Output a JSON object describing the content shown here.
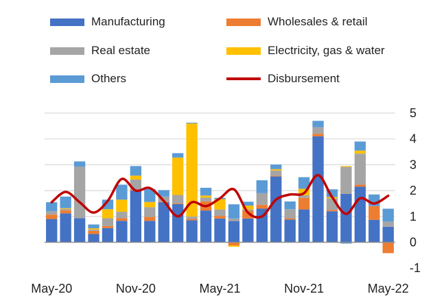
{
  "chart_data": {
    "type": "bar",
    "stacked": true,
    "title": "",
    "xlabel": "",
    "ylabel": "",
    "ylim": [
      -1,
      5
    ],
    "yticks": [
      "-1",
      "0",
      "1",
      "2",
      "3",
      "4",
      "5"
    ],
    "y_axis_side": "right",
    "grid": true,
    "legend_placement": "top",
    "categories": [
      "May-20",
      "Jun-20",
      "Jul-20",
      "Aug-20",
      "Sep-20",
      "Oct-20",
      "Nov-20",
      "Dec-20",
      "Jan-21",
      "Feb-21",
      "Mar-21",
      "Apr-21",
      "May-21",
      "Jun-21",
      "Jul-21",
      "Aug-21",
      "Sep-21",
      "Oct-21",
      "Nov-21",
      "Dec-21",
      "Jan-22",
      "Feb-22",
      "Mar-22",
      "Apr-22",
      "May-22"
    ],
    "xtick_labels": [
      "May-20",
      "Nov-20",
      "May-21",
      "Nov-21",
      "May-22"
    ],
    "series": [
      {
        "name": "Manufacturing",
        "color": "#4472C4",
        "values": [
          0.9,
          1.12,
          0.93,
          0.32,
          0.55,
          0.83,
          2.0,
          0.83,
          1.55,
          1.48,
          0.85,
          1.23,
          0.92,
          0.82,
          0.92,
          1.3,
          2.55,
          0.88,
          1.27,
          4.1,
          1.2,
          1.87,
          2.15,
          0.87,
          0.6
        ]
      },
      {
        "name": "Wholesales & retail",
        "color": "#ED7D31",
        "values": [
          0.17,
          0.12,
          0.0,
          0.12,
          0.08,
          0.1,
          0.03,
          0.15,
          0.02,
          0.03,
          0.05,
          0.35,
          0.1,
          -0.12,
          0.3,
          0.15,
          0.03,
          0.05,
          0.45,
          0.1,
          0.05,
          0.0,
          0.08,
          0.53,
          -0.42
        ]
      },
      {
        "name": "Real estate",
        "color": "#A5A5A5",
        "values": [
          0.13,
          0.05,
          2.0,
          0.05,
          0.3,
          0.25,
          0.4,
          0.38,
          0.2,
          0.32,
          0.1,
          0.15,
          0.25,
          0.1,
          0.05,
          0.45,
          0.2,
          0.35,
          0.1,
          0.25,
          0.45,
          1.05,
          1.2,
          0.0,
          0.2
        ]
      },
      {
        "name": "Electricity, gas & water",
        "color": "#FFC000",
        "values": [
          0.0,
          0.03,
          0.0,
          0.05,
          0.35,
          0.47,
          0.15,
          0.2,
          0.0,
          1.45,
          3.6,
          0.08,
          0.4,
          -0.05,
          0.15,
          0.0,
          0.05,
          0.0,
          0.25,
          0.0,
          0.05,
          0.03,
          0.12,
          0.0,
          0.0
        ]
      },
      {
        "name": "Others",
        "color": "#5B9BD5",
        "values": [
          0.35,
          0.45,
          0.2,
          0.15,
          0.37,
          0.58,
          0.37,
          0.5,
          0.25,
          0.17,
          0.03,
          0.3,
          0.05,
          0.55,
          0.15,
          0.5,
          0.18,
          0.3,
          0.45,
          0.25,
          0.3,
          -0.05,
          0.35,
          0.45,
          0.5
        ]
      }
    ],
    "line_series": {
      "name": "Disbursement",
      "color": "#C00000",
      "values": [
        1.55,
        1.95,
        1.55,
        1.15,
        1.6,
        2.45,
        2.0,
        2.1,
        1.6,
        1.0,
        1.55,
        1.4,
        1.7,
        2.05,
        1.15,
        1.0,
        1.65,
        1.85,
        1.9,
        2.6,
        1.75,
        1.1,
        1.7,
        1.5,
        1.8
      ]
    }
  }
}
